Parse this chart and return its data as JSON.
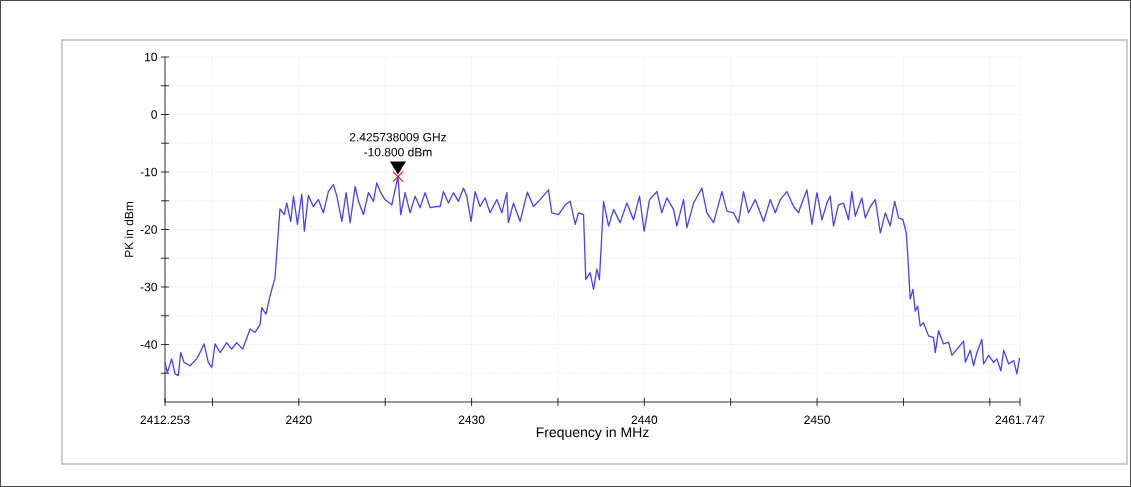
{
  "chart_data": {
    "type": "line",
    "xlabel": "Frequency in MHz",
    "ylabel": "PK in dBm",
    "color": "#4444ff",
    "grid": true,
    "xlim": [
      2412.253,
      2461.747
    ],
    "ylim": [
      -50,
      10
    ],
    "xticks": [
      {
        "value": 2412.253,
        "label": "2412.253"
      },
      {
        "value": 2415,
        "label": null
      },
      2420,
      {
        "value": 2425,
        "label": null
      },
      2430,
      {
        "value": 2435,
        "label": null
      },
      2440,
      {
        "value": 2445,
        "label": null
      },
      2450,
      {
        "value": 2455,
        "label": null
      },
      {
        "value": 2460,
        "label": null
      },
      {
        "value": 2461.747,
        "label": "2461.747"
      }
    ],
    "yticks": [
      10,
      {
        "value": 5,
        "label": null
      },
      0,
      {
        "value": -5,
        "label": null
      },
      -10,
      {
        "value": -15,
        "label": null
      },
      -20,
      {
        "value": -25,
        "label": null
      },
      -30,
      {
        "value": -35,
        "label": null
      },
      -40,
      {
        "value": -45,
        "label": null
      }
    ],
    "annotations": [
      "2.425738009 GHz",
      "-10.800 dBm"
    ],
    "x": [
      2412.253,
      2412.388,
      2412.639,
      2412.832,
      2413.025,
      2413.16,
      2413.353,
      2413.7,
      2414.087,
      2414.28,
      2414.51,
      2414.76,
      2414.96,
      2415.15,
      2415.44,
      2415.82,
      2416.11,
      2416.4,
      2416.75,
      2417.18,
      2417.47,
      2417.76,
      2417.85,
      2418.1,
      2418.33,
      2418.62,
      2418.82,
      2418.91,
      2419.15,
      2419.3,
      2419.53,
      2419.69,
      2419.92,
      2420.17,
      2420.32,
      2420.55,
      2420.84,
      2421.13,
      2421.42,
      2421.71,
      2422.0,
      2422.2,
      2422.49,
      2422.74,
      2422.97,
      2423.26,
      2423.45,
      2423.74,
      2424.03,
      2424.32,
      2424.51,
      2424.74,
      2424.99,
      2425.38,
      2425.738,
      2425.9,
      2426.15,
      2426.44,
      2426.73,
      2427.02,
      2427.31,
      2427.6,
      2427.99,
      2428.18,
      2428.37,
      2428.66,
      2428.95,
      2429.24,
      2429.53,
      2429.72,
      2429.97,
      2430.2,
      2430.49,
      2430.78,
      2431.07,
      2431.46,
      2431.75,
      2432.04,
      2432.13,
      2432.42,
      2432.81,
      2433.23,
      2433.58,
      2433.97,
      2434.45,
      2434.64,
      2435.03,
      2435.42,
      2435.71,
      2436.0,
      2436.19,
      2436.48,
      2436.61,
      2436.86,
      2437.06,
      2437.25,
      2437.4,
      2437.64,
      2437.93,
      2438.22,
      2438.6,
      2438.99,
      2439.37,
      2439.72,
      2439.99,
      2440.3,
      2440.73,
      2441.01,
      2441.3,
      2441.69,
      2441.88,
      2442.27,
      2442.46,
      2442.85,
      2443.33,
      2443.62,
      2444.01,
      2444.49,
      2444.78,
      2445.16,
      2445.45,
      2445.74,
      2446.03,
      2446.42,
      2446.9,
      2447.29,
      2447.58,
      2447.87,
      2448.25,
      2448.64,
      2448.93,
      2449.02,
      2449.41,
      2449.7,
      2449.99,
      2450.28,
      2450.57,
      2450.76,
      2450.95,
      2451.24,
      2451.53,
      2451.82,
      2452.01,
      2452.21,
      2452.59,
      2452.79,
      2453.08,
      2453.37,
      2453.66,
      2453.95,
      2454.23,
      2454.49,
      2454.72,
      2454.97,
      2455.16,
      2455.24,
      2455.39,
      2455.55,
      2455.68,
      2455.82,
      2455.97,
      2456.16,
      2456.45,
      2456.74,
      2456.84,
      2457.03,
      2457.32,
      2457.61,
      2457.81,
      2458.1,
      2458.48,
      2458.58,
      2458.87,
      2459.06,
      2459.25,
      2459.54,
      2459.64,
      2459.93,
      2460.22,
      2460.41,
      2460.64,
      2460.8,
      2461.09,
      2461.38,
      2461.57,
      2461.72
    ],
    "values": [
      -43.1,
      -44.9,
      -42.5,
      -45.1,
      -45.4,
      -41.4,
      -43.1,
      -43.7,
      -42.5,
      -41.4,
      -39.9,
      -43.1,
      -44.0,
      -39.9,
      -41.4,
      -39.7,
      -40.8,
      -39.7,
      -40.8,
      -37.3,
      -37.9,
      -36.5,
      -33.6,
      -34.7,
      -31.6,
      -28.4,
      -20.0,
      -16.4,
      -17.4,
      -15.4,
      -18.6,
      -14.2,
      -19.1,
      -13.9,
      -20.3,
      -14.1,
      -16.0,
      -14.8,
      -17.1,
      -13.4,
      -12.2,
      -14.2,
      -18.6,
      -13.6,
      -18.8,
      -12.5,
      -15.1,
      -17.4,
      -13.6,
      -15.1,
      -11.9,
      -13.6,
      -14.8,
      -15.7,
      -10.8,
      -17.4,
      -13.6,
      -17.1,
      -14.2,
      -16.2,
      -13.6,
      -16.2,
      -16.0,
      -16.0,
      -13.4,
      -15.4,
      -13.6,
      -15.1,
      -12.8,
      -14.2,
      -18.6,
      -13.4,
      -16.0,
      -14.5,
      -17.1,
      -14.8,
      -17.1,
      -13.6,
      -18.8,
      -15.4,
      -18.6,
      -13.5,
      -16.0,
      -14.8,
      -13.1,
      -17.1,
      -17.4,
      -15.7,
      -15.1,
      -19.1,
      -17.1,
      -17.4,
      -28.7,
      -27.5,
      -30.4,
      -26.9,
      -28.7,
      -15.1,
      -19.4,
      -16.5,
      -18.8,
      -15.4,
      -18.3,
      -14.2,
      -20.3,
      -14.8,
      -13.4,
      -17.1,
      -14.5,
      -16.5,
      -19.4,
      -14.8,
      -19.7,
      -15.4,
      -12.8,
      -17.1,
      -18.8,
      -13.4,
      -16.8,
      -17.1,
      -18.8,
      -13.4,
      -17.1,
      -14.8,
      -18.6,
      -14.8,
      -17.1,
      -14.8,
      -13.4,
      -16.0,
      -17.1,
      -16.2,
      -13.1,
      -19.1,
      -13.6,
      -18.3,
      -15.4,
      -14.2,
      -19.4,
      -15.7,
      -15.4,
      -18.3,
      -13.4,
      -17.7,
      -14.5,
      -18.0,
      -16.0,
      -14.8,
      -20.6,
      -17.1,
      -19.4,
      -15.1,
      -18.0,
      -18.3,
      -20.6,
      -24.0,
      -32.1,
      -30.4,
      -34.2,
      -33.3,
      -36.8,
      -36.2,
      -38.5,
      -38.8,
      -41.4,
      -37.6,
      -39.9,
      -39.6,
      -41.9,
      -40.8,
      -39.4,
      -43.1,
      -41.0,
      -43.7,
      -41.4,
      -39.1,
      -43.4,
      -41.9,
      -43.1,
      -42.5,
      -44.6,
      -41.0,
      -43.4,
      -42.8,
      -45.1,
      -42.3
    ]
  }
}
